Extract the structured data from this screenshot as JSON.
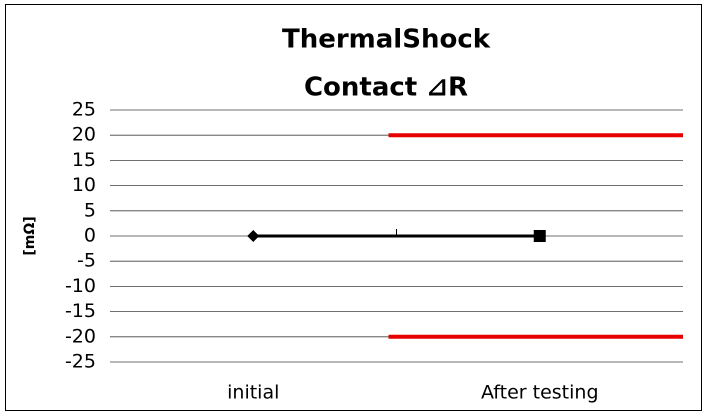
{
  "chart_data": {
    "type": "line",
    "title": [
      "ThermalShock",
      "Contact ⊿R"
    ],
    "y_label": "[mΩ]",
    "categories": [
      "initial",
      "After testing"
    ],
    "values": [
      0,
      0
    ],
    "color": "#000000",
    "ylim": [
      -25,
      25
    ],
    "yticks": [
      -25,
      -20,
      -15,
      -10,
      -5,
      0,
      5,
      10,
      15,
      20,
      25
    ],
    "grid": true,
    "reference_lines": [
      {
        "value": 20,
        "color": "#e60000"
      },
      {
        "value": -20,
        "color": "#e60000"
      }
    ]
  }
}
